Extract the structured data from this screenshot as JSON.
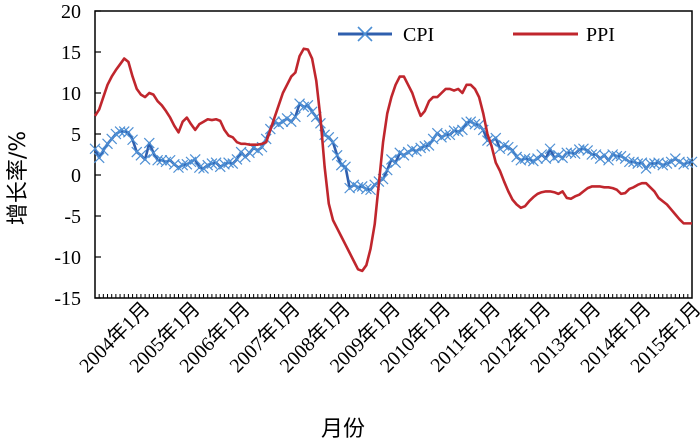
{
  "chart_data": {
    "type": "line",
    "title": "",
    "xlabel": "月份",
    "ylabel": "增长率/%",
    "ylim": [
      -15,
      20
    ],
    "yticks": [
      20,
      15,
      10,
      5,
      0,
      -5,
      -10,
      -15
    ],
    "months_total": 144,
    "x_tick_labels": [
      "2004年1月",
      "2005年1月",
      "2006年1月",
      "2007年1月",
      "2008年1月",
      "2009年1月",
      "2010年1月",
      "2011年1月",
      "2012年1月",
      "2013年1月",
      "2014年1月",
      "2015年1月"
    ],
    "legend": {
      "position": "top-right",
      "entries": [
        "CPI",
        "PPI"
      ]
    },
    "series": [
      {
        "name": "CPI",
        "color": "#2f5fae",
        "marker": "x",
        "points": [
          [
            0,
            3.2
          ],
          [
            1,
            2.1
          ],
          [
            2,
            3.0
          ],
          [
            3,
            3.8
          ],
          [
            4,
            4.4
          ],
          [
            5,
            5.0
          ],
          [
            6,
            5.3
          ],
          [
            7,
            5.3
          ],
          [
            8,
            5.2
          ],
          [
            9,
            4.3
          ],
          [
            10,
            2.8
          ],
          [
            11,
            2.4
          ],
          [
            12,
            1.9
          ],
          [
            13,
            3.9
          ],
          [
            14,
            2.7
          ],
          [
            15,
            1.8
          ],
          [
            16,
            1.8
          ],
          [
            17,
            1.6
          ],
          [
            18,
            1.8
          ],
          [
            19,
            1.3
          ],
          [
            20,
            0.9
          ],
          [
            21,
            1.2
          ],
          [
            22,
            1.3
          ],
          [
            23,
            1.6
          ],
          [
            24,
            1.9
          ],
          [
            25,
            0.9
          ],
          [
            26,
            0.8
          ],
          [
            27,
            1.2
          ],
          [
            28,
            1.4
          ],
          [
            29,
            1.5
          ],
          [
            30,
            1.0
          ],
          [
            31,
            1.3
          ],
          [
            32,
            1.5
          ],
          [
            33,
            1.4
          ],
          [
            34,
            1.9
          ],
          [
            35,
            2.8
          ],
          [
            36,
            2.2
          ],
          [
            37,
            2.7
          ],
          [
            38,
            3.3
          ],
          [
            39,
            3.0
          ],
          [
            40,
            3.4
          ],
          [
            41,
            4.4
          ],
          [
            42,
            5.6
          ],
          [
            43,
            6.5
          ],
          [
            44,
            6.2
          ],
          [
            45,
            6.5
          ],
          [
            46,
            6.9
          ],
          [
            47,
            6.5
          ],
          [
            48,
            7.1
          ],
          [
            49,
            8.7
          ],
          [
            50,
            8.3
          ],
          [
            51,
            8.5
          ],
          [
            52,
            7.7
          ],
          [
            53,
            7.1
          ],
          [
            54,
            6.3
          ],
          [
            55,
            4.9
          ],
          [
            56,
            4.6
          ],
          [
            57,
            4.0
          ],
          [
            58,
            2.4
          ],
          [
            59,
            1.2
          ],
          [
            60,
            1.0
          ],
          [
            61,
            -1.6
          ],
          [
            62,
            -1.2
          ],
          [
            63,
            -1.5
          ],
          [
            64,
            -1.4
          ],
          [
            65,
            -1.7
          ],
          [
            66,
            -1.8
          ],
          [
            67,
            -1.2
          ],
          [
            68,
            -0.8
          ],
          [
            69,
            -0.5
          ],
          [
            70,
            0.6
          ],
          [
            71,
            1.9
          ],
          [
            72,
            1.5
          ],
          [
            73,
            2.7
          ],
          [
            74,
            2.4
          ],
          [
            75,
            2.8
          ],
          [
            76,
            3.1
          ],
          [
            77,
            2.9
          ],
          [
            78,
            3.3
          ],
          [
            79,
            3.5
          ],
          [
            80,
            3.6
          ],
          [
            81,
            4.4
          ],
          [
            82,
            5.1
          ],
          [
            83,
            4.6
          ],
          [
            84,
            4.9
          ],
          [
            85,
            4.9
          ],
          [
            86,
            5.4
          ],
          [
            87,
            5.3
          ],
          [
            88,
            5.5
          ],
          [
            89,
            6.4
          ],
          [
            90,
            6.5
          ],
          [
            91,
            6.2
          ],
          [
            92,
            6.1
          ],
          [
            93,
            5.5
          ],
          [
            94,
            4.2
          ],
          [
            95,
            4.1
          ],
          [
            96,
            4.5
          ],
          [
            97,
            3.2
          ],
          [
            98,
            3.6
          ],
          [
            99,
            3.4
          ],
          [
            100,
            3.0
          ],
          [
            101,
            2.2
          ],
          [
            102,
            1.8
          ],
          [
            103,
            2.0
          ],
          [
            104,
            1.9
          ],
          [
            105,
            1.7
          ],
          [
            106,
            2.0
          ],
          [
            107,
            2.5
          ],
          [
            108,
            2.0
          ],
          [
            109,
            3.2
          ],
          [
            110,
            2.1
          ],
          [
            111,
            2.4
          ],
          [
            112,
            2.1
          ],
          [
            113,
            2.7
          ],
          [
            114,
            2.7
          ],
          [
            115,
            2.6
          ],
          [
            116,
            3.1
          ],
          [
            117,
            3.2
          ],
          [
            118,
            3.0
          ],
          [
            119,
            2.5
          ],
          [
            120,
            2.5
          ],
          [
            121,
            2.0
          ],
          [
            122,
            2.4
          ],
          [
            123,
            1.8
          ],
          [
            124,
            2.5
          ],
          [
            125,
            2.3
          ],
          [
            126,
            2.3
          ],
          [
            127,
            2.0
          ],
          [
            128,
            1.6
          ],
          [
            129,
            1.6
          ],
          [
            130,
            1.4
          ],
          [
            131,
            1.5
          ],
          [
            132,
            0.8
          ],
          [
            133,
            1.4
          ],
          [
            134,
            1.4
          ],
          [
            135,
            1.5
          ],
          [
            136,
            1.2
          ],
          [
            137,
            1.4
          ],
          [
            138,
            1.6
          ],
          [
            139,
            2.0
          ],
          [
            140,
            1.6
          ],
          [
            141,
            1.3
          ],
          [
            142,
            1.5
          ],
          [
            143,
            1.6
          ]
        ]
      },
      {
        "name": "PPI",
        "color": "#c0262d",
        "marker": "none",
        "points": [
          [
            0,
            7.2
          ],
          [
            1,
            8.0
          ],
          [
            2,
            9.5
          ],
          [
            3,
            11.0
          ],
          [
            4,
            12.0
          ],
          [
            5,
            12.8
          ],
          [
            6,
            13.5
          ],
          [
            7,
            14.2
          ],
          [
            8,
            13.8
          ],
          [
            9,
            12.0
          ],
          [
            10,
            10.5
          ],
          [
            11,
            9.8
          ],
          [
            12,
            9.5
          ],
          [
            13,
            10.0
          ],
          [
            14,
            9.8
          ],
          [
            15,
            9.0
          ],
          [
            16,
            8.5
          ],
          [
            17,
            7.8
          ],
          [
            18,
            7.0
          ],
          [
            19,
            6.0
          ],
          [
            20,
            5.2
          ],
          [
            21,
            6.5
          ],
          [
            22,
            7.0
          ],
          [
            23,
            6.2
          ],
          [
            24,
            5.5
          ],
          [
            25,
            6.2
          ],
          [
            26,
            6.5
          ],
          [
            27,
            6.8
          ],
          [
            28,
            6.7
          ],
          [
            29,
            6.8
          ],
          [
            30,
            6.6
          ],
          [
            31,
            5.5
          ],
          [
            32,
            4.8
          ],
          [
            33,
            4.6
          ],
          [
            34,
            4.0
          ],
          [
            35,
            3.8
          ],
          [
            36,
            3.8
          ],
          [
            37,
            3.7
          ],
          [
            38,
            3.7
          ],
          [
            39,
            3.7
          ],
          [
            40,
            3.8
          ],
          [
            41,
            4.0
          ],
          [
            42,
            5.5
          ],
          [
            43,
            7.0
          ],
          [
            44,
            8.5
          ],
          [
            45,
            10.0
          ],
          [
            46,
            11.0
          ],
          [
            47,
            12.0
          ],
          [
            48,
            12.5
          ],
          [
            49,
            14.5
          ],
          [
            50,
            15.4
          ],
          [
            51,
            15.3
          ],
          [
            52,
            14.2
          ],
          [
            53,
            11.5
          ],
          [
            54,
            7.0
          ],
          [
            55,
            1.0
          ],
          [
            56,
            -3.5
          ],
          [
            57,
            -5.5
          ],
          [
            58,
            -6.5
          ],
          [
            59,
            -7.5
          ],
          [
            60,
            -8.5
          ],
          [
            61,
            -9.5
          ],
          [
            62,
            -10.5
          ],
          [
            63,
            -11.5
          ],
          [
            64,
            -11.7
          ],
          [
            65,
            -11.0
          ],
          [
            66,
            -9.0
          ],
          [
            67,
            -6.0
          ],
          [
            68,
            -1.0
          ],
          [
            69,
            4.0
          ],
          [
            70,
            7.5
          ],
          [
            71,
            9.5
          ],
          [
            72,
            11.0
          ],
          [
            73,
            12.0
          ],
          [
            74,
            12.0
          ],
          [
            75,
            11.0
          ],
          [
            76,
            10.0
          ],
          [
            77,
            8.5
          ],
          [
            78,
            7.2
          ],
          [
            79,
            7.8
          ],
          [
            80,
            9.0
          ],
          [
            81,
            9.5
          ],
          [
            82,
            9.5
          ],
          [
            83,
            10.0
          ],
          [
            84,
            10.5
          ],
          [
            85,
            10.5
          ],
          [
            86,
            10.3
          ],
          [
            87,
            10.5
          ],
          [
            88,
            10.0
          ],
          [
            89,
            11.0
          ],
          [
            90,
            11.0
          ],
          [
            91,
            10.5
          ],
          [
            92,
            9.5
          ],
          [
            93,
            7.5
          ],
          [
            94,
            5.0
          ],
          [
            95,
            3.5
          ],
          [
            96,
            1.5
          ],
          [
            97,
            0.5
          ],
          [
            98,
            -0.8
          ],
          [
            99,
            -2.0
          ],
          [
            100,
            -3.0
          ],
          [
            101,
            -3.6
          ],
          [
            102,
            -4.0
          ],
          [
            103,
            -3.8
          ],
          [
            104,
            -3.2
          ],
          [
            105,
            -2.7
          ],
          [
            106,
            -2.3
          ],
          [
            107,
            -2.1
          ],
          [
            108,
            -2.0
          ],
          [
            109,
            -2.0
          ],
          [
            110,
            -2.1
          ],
          [
            111,
            -2.3
          ],
          [
            112,
            -2.0
          ],
          [
            113,
            -2.8
          ],
          [
            114,
            -2.9
          ],
          [
            115,
            -2.6
          ],
          [
            116,
            -2.4
          ],
          [
            117,
            -2.0
          ],
          [
            118,
            -1.6
          ],
          [
            119,
            -1.4
          ],
          [
            120,
            -1.4
          ],
          [
            121,
            -1.4
          ],
          [
            122,
            -1.5
          ],
          [
            123,
            -1.5
          ],
          [
            124,
            -1.6
          ],
          [
            125,
            -1.8
          ],
          [
            126,
            -2.3
          ],
          [
            127,
            -2.2
          ],
          [
            128,
            -1.7
          ],
          [
            129,
            -1.5
          ],
          [
            130,
            -1.2
          ],
          [
            131,
            -1.0
          ],
          [
            132,
            -1.0
          ],
          [
            133,
            -1.5
          ],
          [
            134,
            -2.0
          ],
          [
            135,
            -2.8
          ],
          [
            136,
            -3.2
          ],
          [
            137,
            -3.6
          ],
          [
            138,
            -4.2
          ],
          [
            139,
            -4.8
          ],
          [
            140,
            -5.4
          ],
          [
            141,
            -5.9
          ],
          [
            142,
            -5.9
          ],
          [
            143,
            -5.9
          ]
        ]
      }
    ]
  }
}
